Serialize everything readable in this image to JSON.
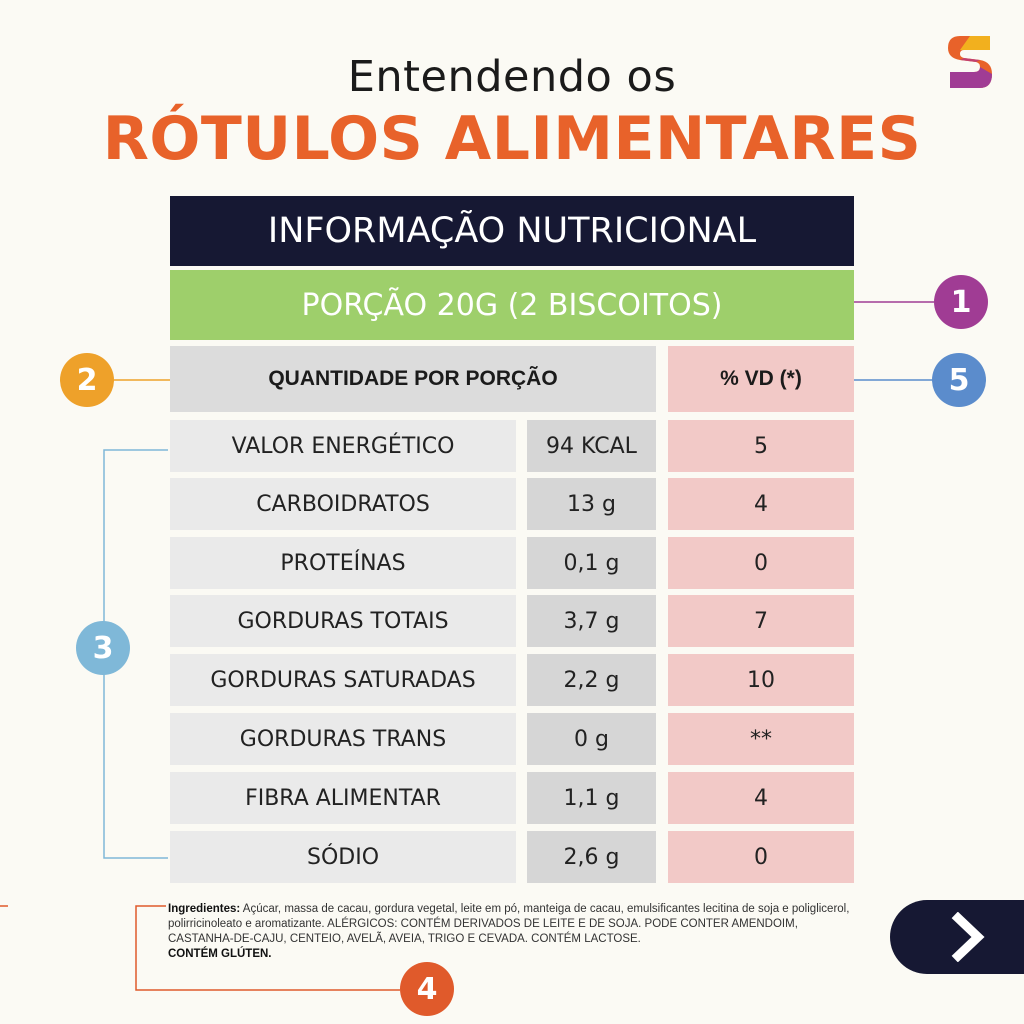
{
  "header": {
    "subtitle": "Entendendo os",
    "title": "RÓTULOS ALIMENTARES"
  },
  "table": {
    "info_title": "INFORMAÇÃO NUTRICIONAL",
    "portion": "PORÇÃO 20G (2 BISCOITOS)",
    "qty_header": "QUANTIDADE POR PORÇÃO",
    "vd_header": "% VD (*)",
    "rows": [
      {
        "name": "VALOR ENERGÉTICO",
        "amount": "94 KCAL",
        "vd": "5"
      },
      {
        "name": "CARBOIDRATOS",
        "amount": "13 g",
        "vd": "4"
      },
      {
        "name": "PROTEÍNAS",
        "amount": "0,1 g",
        "vd": "0"
      },
      {
        "name": "GORDURAS TOTAIS",
        "amount": "3,7 g",
        "vd": "7"
      },
      {
        "name": "GORDURAS SATURADAS",
        "amount": "2,2 g",
        "vd": "10"
      },
      {
        "name": "GORDURAS TRANS",
        "amount": "0 g",
        "vd": "**"
      },
      {
        "name": "FIBRA ALIMENTAR",
        "amount": "1,1 g",
        "vd": "4"
      },
      {
        "name": "SÓDIO",
        "amount": "2,6 g",
        "vd": "0"
      }
    ]
  },
  "callouts": {
    "b1": "1",
    "b2": "2",
    "b3": "3",
    "b4": "4",
    "b5": "5"
  },
  "ingredients": {
    "label": "Ingredientes:",
    "text1": " Açúcar, massa de cacau, gordura vegetal, leite em pó, manteiga de cacau, emulsificantes lecitina de soja e poliglicerol, polirricinoleato e aromatizante. ALÉRGICOS: CONTÉM DERIVADOS DE LEITE E DE SOJA. PODE CONTER AMENDOIM, CASTANHA-DE-CAJU, CENTEIO, AVELÃ, AVEIA, TRIGO E CEVADA. CONTÉM LACTOSE.",
    "gluten": "CONTÉM GLÚTEN."
  },
  "icons": {
    "logo": "brand-s-logo-icon",
    "next": "chevron-right-icon"
  },
  "colors": {
    "title_orange": "#e8622a",
    "navy": "#161833",
    "green": "#9ecf6b",
    "pink": "#f2c9c7",
    "badge_purple": "#a03c94",
    "badge_yellow": "#eea12a",
    "badge_blue": "#5b8ccc",
    "badge_lightblue": "#7fb8d8",
    "badge_orange": "#e05a2b"
  }
}
